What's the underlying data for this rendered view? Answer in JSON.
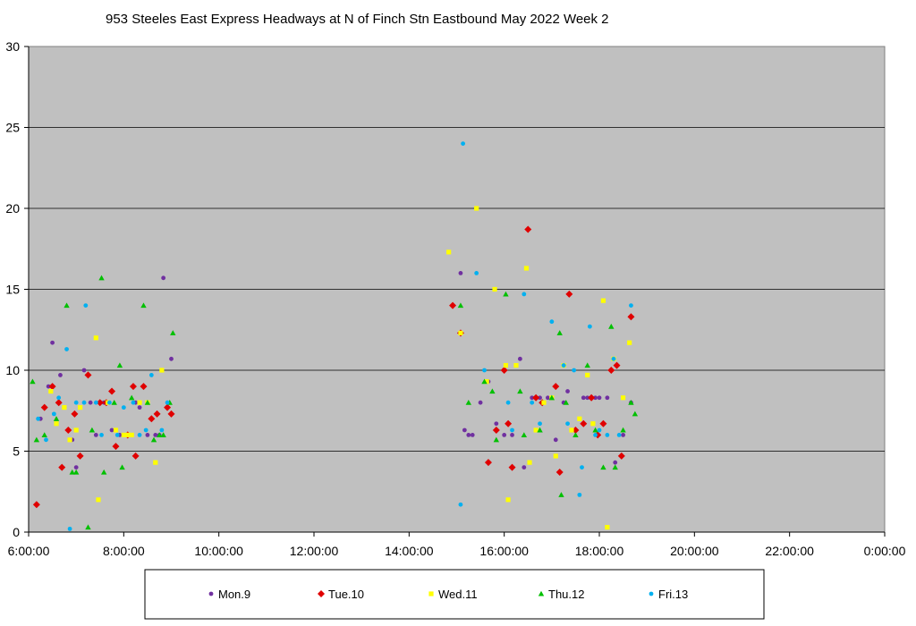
{
  "chart_data": {
    "type": "scatter",
    "title": "953 Steeles East Express Headways at N of Finch Stn Eastbound May 2022  Week 2",
    "xlabel": "",
    "ylabel": "",
    "xlim": [
      "6:00:00",
      "0:00:00"
    ],
    "ylim": [
      0,
      30
    ],
    "grid": true,
    "legend_position": "bottom",
    "x_tick_labels": [
      "6:00:00",
      "8:00:00",
      "10:00:00",
      "12:00:00",
      "14:00:00",
      "16:00:00",
      "18:00:00",
      "20:00:00",
      "22:00:00",
      "0:00:00"
    ],
    "y_tick_labels": [
      "0",
      "5",
      "10",
      "15",
      "20",
      "25",
      "30"
    ],
    "series": [
      {
        "name": "Mon.9",
        "color": "#7030a0",
        "marker": "circle",
        "points": [
          [
            "6:15:00",
            7.0
          ],
          [
            "6:25:00",
            9.0
          ],
          [
            "6:30:00",
            11.7
          ],
          [
            "6:40:00",
            9.7
          ],
          [
            "6:45:00",
            7.7
          ],
          [
            "6:55:00",
            5.7
          ],
          [
            "7:00:00",
            4.0
          ],
          [
            "7:10:00",
            10.0
          ],
          [
            "7:18:00",
            8.0
          ],
          [
            "7:25:00",
            6.0
          ],
          [
            "7:35:00",
            8.0
          ],
          [
            "7:45:00",
            6.3
          ],
          [
            "7:55:00",
            6.0
          ],
          [
            "8:00:00",
            6.0
          ],
          [
            "8:08:00",
            6.0
          ],
          [
            "8:15:00",
            8.0
          ],
          [
            "8:20:00",
            7.7
          ],
          [
            "8:30:00",
            6.0
          ],
          [
            "8:40:00",
            6.0
          ],
          [
            "8:45:00",
            6.0
          ],
          [
            "8:50:00",
            15.7
          ],
          [
            "9:00:00",
            10.7
          ],
          [
            "15:05:00",
            16.0
          ],
          [
            "15:10:00",
            6.3
          ],
          [
            "15:15:00",
            6.0
          ],
          [
            "15:20:00",
            6.0
          ],
          [
            "15:30:00",
            8.0
          ],
          [
            "15:40:00",
            9.3
          ],
          [
            "15:50:00",
            6.7
          ],
          [
            "16:00:00",
            6.0
          ],
          [
            "16:10:00",
            6.0
          ],
          [
            "16:20:00",
            10.7
          ],
          [
            "16:25:00",
            4.0
          ],
          [
            "16:35:00",
            8.3
          ],
          [
            "16:40:00",
            8.3
          ],
          [
            "16:45:00",
            8.3
          ],
          [
            "16:55:00",
            8.3
          ],
          [
            "17:05:00",
            5.7
          ],
          [
            "17:15:00",
            8.0
          ],
          [
            "17:20:00",
            8.7
          ],
          [
            "17:30:00",
            6.3
          ],
          [
            "17:40:00",
            8.3
          ],
          [
            "17:45:00",
            8.3
          ],
          [
            "17:55:00",
            8.3
          ],
          [
            "18:00:00",
            8.3
          ],
          [
            "18:10:00",
            8.3
          ],
          [
            "18:20:00",
            4.3
          ],
          [
            "18:30:00",
            6.0
          ],
          [
            "18:40:00",
            8.0
          ]
        ]
      },
      {
        "name": "Tue.10",
        "color": "#e00000",
        "marker": "diamond",
        "points": [
          [
            "6:10:00",
            1.7
          ],
          [
            "6:20:00",
            7.7
          ],
          [
            "6:30:00",
            9.0
          ],
          [
            "6:38:00",
            8.0
          ],
          [
            "6:42:00",
            4.0
          ],
          [
            "6:50:00",
            6.3
          ],
          [
            "6:58:00",
            7.3
          ],
          [
            "7:05:00",
            4.7
          ],
          [
            "7:15:00",
            9.7
          ],
          [
            "7:30:00",
            8.0
          ],
          [
            "7:38:00",
            8.0
          ],
          [
            "7:45:00",
            8.7
          ],
          [
            "7:50:00",
            5.3
          ],
          [
            "8:05:00",
            6.0
          ],
          [
            "8:12:00",
            9.0
          ],
          [
            "8:15:00",
            4.7
          ],
          [
            "8:25:00",
            9.0
          ],
          [
            "8:35:00",
            7.0
          ],
          [
            "8:42:00",
            7.3
          ],
          [
            "8:55:00",
            7.7
          ],
          [
            "9:00:00",
            7.3
          ],
          [
            "14:55:00",
            14.0
          ],
          [
            "15:05:00",
            12.3
          ],
          [
            "15:40:00",
            4.3
          ],
          [
            "15:50:00",
            6.3
          ],
          [
            "16:00:00",
            10.0
          ],
          [
            "16:05:00",
            6.7
          ],
          [
            "16:10:00",
            4.0
          ],
          [
            "16:30:00",
            18.7
          ],
          [
            "16:40:00",
            8.3
          ],
          [
            "16:48:00",
            8.0
          ],
          [
            "17:05:00",
            9.0
          ],
          [
            "17:10:00",
            3.7
          ],
          [
            "17:22:00",
            14.7
          ],
          [
            "17:30:00",
            6.3
          ],
          [
            "17:40:00",
            6.7
          ],
          [
            "17:50:00",
            8.3
          ],
          [
            "17:58:00",
            6.0
          ],
          [
            "18:05:00",
            6.7
          ],
          [
            "18:15:00",
            10.0
          ],
          [
            "18:22:00",
            10.3
          ],
          [
            "18:28:00",
            4.7
          ],
          [
            "18:40:00",
            13.3
          ]
        ]
      },
      {
        "name": "Wed.11",
        "color": "#ffff00",
        "marker": "square",
        "points": [
          [
            "6:28:00",
            8.7
          ],
          [
            "6:35:00",
            6.7
          ],
          [
            "6:45:00",
            7.7
          ],
          [
            "6:52:00",
            5.7
          ],
          [
            "7:00:00",
            6.3
          ],
          [
            "7:05:00",
            7.7
          ],
          [
            "7:25:00",
            12.0
          ],
          [
            "7:28:00",
            2.0
          ],
          [
            "7:40:00",
            8.0
          ],
          [
            "7:50:00",
            6.3
          ],
          [
            "8:00:00",
            6.0
          ],
          [
            "8:05:00",
            6.0
          ],
          [
            "8:10:00",
            6.0
          ],
          [
            "8:20:00",
            8.0
          ],
          [
            "8:30:00",
            8.0
          ],
          [
            "8:40:00",
            4.3
          ],
          [
            "8:48:00",
            10.0
          ],
          [
            "14:50:00",
            17.3
          ],
          [
            "15:05:00",
            12.3
          ],
          [
            "15:25:00",
            20.0
          ],
          [
            "15:38:00",
            9.3
          ],
          [
            "15:48:00",
            15.0
          ],
          [
            "16:02:00",
            10.3
          ],
          [
            "16:05:00",
            2.0
          ],
          [
            "16:15:00",
            10.3
          ],
          [
            "16:28:00",
            16.3
          ],
          [
            "16:32:00",
            4.3
          ],
          [
            "16:40:00",
            6.3
          ],
          [
            "16:50:00",
            8.0
          ],
          [
            "17:00:00",
            8.3
          ],
          [
            "17:05:00",
            4.7
          ],
          [
            "17:15:00",
            10.3
          ],
          [
            "17:25:00",
            6.3
          ],
          [
            "17:35:00",
            7.0
          ],
          [
            "17:45:00",
            9.7
          ],
          [
            "17:52:00",
            6.7
          ],
          [
            "18:05:00",
            14.3
          ],
          [
            "18:10:00",
            0.3
          ],
          [
            "18:18:00",
            10.7
          ],
          [
            "18:30:00",
            8.3
          ],
          [
            "18:38:00",
            11.7
          ]
        ]
      },
      {
        "name": "Thu.12",
        "color": "#00c000",
        "marker": "triangle",
        "points": [
          [
            "6:05:00",
            9.3
          ],
          [
            "6:10:00",
            5.7
          ],
          [
            "6:20:00",
            6.0
          ],
          [
            "6:35:00",
            7.0
          ],
          [
            "6:48:00",
            14.0
          ],
          [
            "6:55:00",
            3.7
          ],
          [
            "7:00:00",
            3.7
          ],
          [
            "7:15:00",
            0.3
          ],
          [
            "7:20:00",
            6.3
          ],
          [
            "7:32:00",
            15.7
          ],
          [
            "7:35:00",
            3.7
          ],
          [
            "7:48:00",
            8.0
          ],
          [
            "7:55:00",
            10.3
          ],
          [
            "7:58:00",
            4.0
          ],
          [
            "8:10:00",
            8.3
          ],
          [
            "8:25:00",
            14.0
          ],
          [
            "8:30:00",
            8.0
          ],
          [
            "8:38:00",
            5.7
          ],
          [
            "8:45:00",
            6.0
          ],
          [
            "8:50:00",
            6.0
          ],
          [
            "8:58:00",
            8.0
          ],
          [
            "9:02:00",
            12.3
          ],
          [
            "15:05:00",
            14.0
          ],
          [
            "15:15:00",
            8.0
          ],
          [
            "15:35:00",
            9.3
          ],
          [
            "15:45:00",
            8.7
          ],
          [
            "15:50:00",
            5.7
          ],
          [
            "16:02:00",
            14.7
          ],
          [
            "16:20:00",
            8.7
          ],
          [
            "16:25:00",
            6.0
          ],
          [
            "16:45:00",
            6.3
          ],
          [
            "17:00:00",
            8.3
          ],
          [
            "17:10:00",
            12.3
          ],
          [
            "17:12:00",
            2.3
          ],
          [
            "17:18:00",
            8.0
          ],
          [
            "17:30:00",
            6.0
          ],
          [
            "17:45:00",
            10.3
          ],
          [
            "17:55:00",
            6.3
          ],
          [
            "18:05:00",
            4.0
          ],
          [
            "18:15:00",
            12.7
          ],
          [
            "18:20:00",
            4.0
          ],
          [
            "18:30:00",
            6.3
          ],
          [
            "18:40:00",
            8.0
          ],
          [
            "18:45:00",
            7.3
          ]
        ]
      },
      {
        "name": "Fri.13",
        "color": "#00b0f0",
        "marker": "circle",
        "points": [
          [
            "6:12:00",
            7.0
          ],
          [
            "6:22:00",
            5.7
          ],
          [
            "6:32:00",
            7.3
          ],
          [
            "6:38:00",
            8.3
          ],
          [
            "6:48:00",
            11.3
          ],
          [
            "6:52:00",
            0.2
          ],
          [
            "7:00:00",
            8.0
          ],
          [
            "7:10:00",
            8.0
          ],
          [
            "7:12:00",
            14.0
          ],
          [
            "7:25:00",
            8.0
          ],
          [
            "7:32:00",
            6.0
          ],
          [
            "7:42:00",
            8.0
          ],
          [
            "7:52:00",
            6.0
          ],
          [
            "8:00:00",
            7.7
          ],
          [
            "8:12:00",
            8.0
          ],
          [
            "8:20:00",
            6.0
          ],
          [
            "8:28:00",
            6.3
          ],
          [
            "8:35:00",
            9.7
          ],
          [
            "8:48:00",
            6.3
          ],
          [
            "8:55:00",
            8.0
          ],
          [
            "15:05:00",
            1.7
          ],
          [
            "15:08:00",
            24.0
          ],
          [
            "15:25:00",
            16.0
          ],
          [
            "15:35:00",
            10.0
          ],
          [
            "16:05:00",
            8.0
          ],
          [
            "16:10:00",
            6.3
          ],
          [
            "16:25:00",
            14.7
          ],
          [
            "16:35:00",
            8.0
          ],
          [
            "16:45:00",
            6.7
          ],
          [
            "17:00:00",
            13.0
          ],
          [
            "17:15:00",
            10.3
          ],
          [
            "17:20:00",
            6.7
          ],
          [
            "17:28:00",
            10.0
          ],
          [
            "17:35:00",
            2.3
          ],
          [
            "17:38:00",
            4.0
          ],
          [
            "17:48:00",
            12.7
          ],
          [
            "17:55:00",
            6.0
          ],
          [
            "18:00:00",
            6.3
          ],
          [
            "18:10:00",
            6.0
          ],
          [
            "18:18:00",
            10.7
          ],
          [
            "18:25:00",
            6.0
          ],
          [
            "18:40:00",
            14.0
          ]
        ]
      }
    ]
  }
}
